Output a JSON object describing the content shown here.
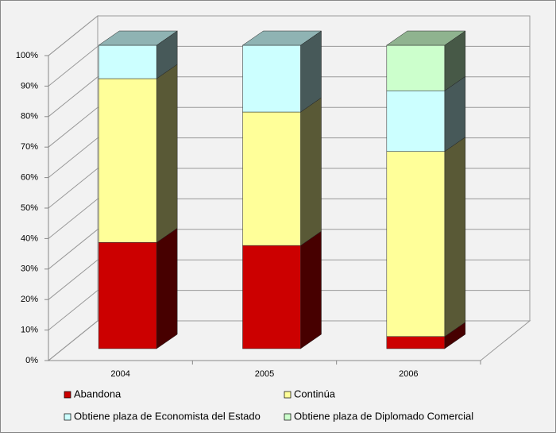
{
  "chart_data": {
    "type": "bar3d_stacked",
    "categories": [
      "2004",
      "2005",
      "2006"
    ],
    "series": [
      {
        "name": "Abandona",
        "color": "#cc0000",
        "values": [
          35,
          34,
          4
        ]
      },
      {
        "name": "Continúa",
        "color": "#ffff99",
        "values": [
          54,
          44,
          61
        ]
      },
      {
        "name": "Obtiene plaza de Economista del Estado",
        "color": "#ccffff",
        "values": [
          11,
          22,
          20
        ]
      },
      {
        "name": "Obtiene plaza de Diplomado Comercial",
        "color": "#ccffcc",
        "values": [
          0,
          0,
          15
        ]
      }
    ],
    "ylim": [
      0,
      100
    ],
    "yticks": [
      {
        "value": 0,
        "label": "0%"
      },
      {
        "value": 10,
        "label": "10%"
      },
      {
        "value": 20,
        "label": "20%"
      },
      {
        "value": 30,
        "label": "30%"
      },
      {
        "value": 40,
        "label": "40%"
      },
      {
        "value": 50,
        "label": "50%"
      },
      {
        "value": 60,
        "label": "60%"
      },
      {
        "value": 70,
        "label": "70%"
      },
      {
        "value": 80,
        "label": "80%"
      },
      {
        "value": 90,
        "label": "90%"
      },
      {
        "value": 100,
        "label": "100%"
      }
    ],
    "grid": true
  }
}
